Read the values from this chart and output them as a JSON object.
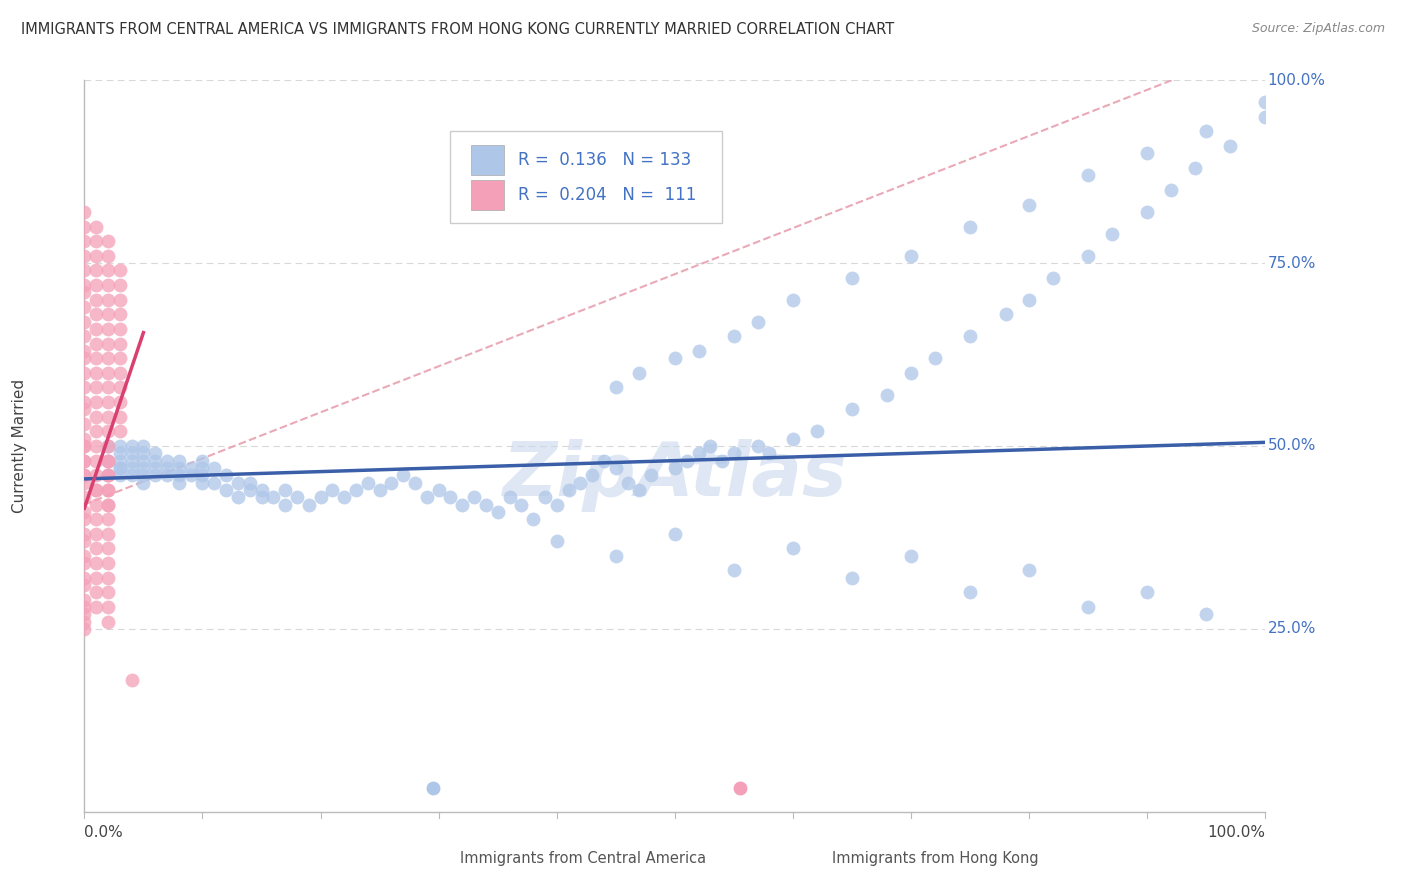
{
  "title": "IMMIGRANTS FROM CENTRAL AMERICA VS IMMIGRANTS FROM HONG KONG CURRENTLY MARRIED CORRELATION CHART",
  "source": "Source: ZipAtlas.com",
  "ylabel": "Currently Married",
  "legend_labels": [
    "Immigrants from Central America",
    "Immigrants from Hong Kong"
  ],
  "R_blue": 0.136,
  "N_blue": 133,
  "R_pink": 0.204,
  "N_pink": 111,
  "blue_color": "#aec6e8",
  "pink_color": "#f4a0b8",
  "blue_line_color": "#3a5fa8",
  "pink_line_color": "#d94070",
  "dash_line_color": "#e8a0b0",
  "watermark": "ZipAtlas",
  "background_color": "#ffffff",
  "grid_color": "#d8d8d8",
  "ytick_color": "#4472c4",
  "blue_x": [
    0.02,
    0.02,
    0.02,
    0.03,
    0.03,
    0.03,
    0.03,
    0.03,
    0.03,
    0.04,
    0.04,
    0.04,
    0.04,
    0.04,
    0.05,
    0.05,
    0.05,
    0.05,
    0.05,
    0.05,
    0.06,
    0.06,
    0.06,
    0.06,
    0.07,
    0.07,
    0.07,
    0.08,
    0.08,
    0.08,
    0.08,
    0.09,
    0.09,
    0.1,
    0.1,
    0.1,
    0.1,
    0.11,
    0.11,
    0.12,
    0.12,
    0.13,
    0.13,
    0.14,
    0.14,
    0.15,
    0.15,
    0.16,
    0.17,
    0.17,
    0.18,
    0.19,
    0.2,
    0.21,
    0.22,
    0.23,
    0.24,
    0.25,
    0.26,
    0.27,
    0.28,
    0.29,
    0.3,
    0.31,
    0.32,
    0.33,
    0.34,
    0.35,
    0.36,
    0.37,
    0.38,
    0.39,
    0.4,
    0.41,
    0.42,
    0.43,
    0.44,
    0.45,
    0.46,
    0.47,
    0.48,
    0.5,
    0.51,
    0.52,
    0.53,
    0.54,
    0.55,
    0.57,
    0.58,
    0.6,
    0.62,
    0.65,
    0.68,
    0.7,
    0.72,
    0.75,
    0.78,
    0.8,
    0.82,
    0.85,
    0.87,
    0.9,
    0.92,
    0.94,
    0.97,
    1.0,
    0.45,
    0.47,
    0.5,
    0.52,
    0.55,
    0.57,
    0.6,
    0.65,
    0.7,
    0.75,
    0.8,
    0.85,
    0.9,
    0.95,
    1.0,
    0.4,
    0.45,
    0.5,
    0.55,
    0.6,
    0.65,
    0.7,
    0.75,
    0.8,
    0.85,
    0.9,
    0.95
  ],
  "blue_y": [
    0.48,
    0.5,
    0.46,
    0.49,
    0.47,
    0.48,
    0.46,
    0.5,
    0.47,
    0.48,
    0.5,
    0.46,
    0.47,
    0.49,
    0.48,
    0.47,
    0.46,
    0.49,
    0.5,
    0.45,
    0.47,
    0.48,
    0.46,
    0.49,
    0.47,
    0.46,
    0.48,
    0.47,
    0.48,
    0.45,
    0.46,
    0.47,
    0.46,
    0.48,
    0.47,
    0.45,
    0.46,
    0.47,
    0.45,
    0.46,
    0.44,
    0.45,
    0.43,
    0.44,
    0.45,
    0.43,
    0.44,
    0.43,
    0.44,
    0.42,
    0.43,
    0.42,
    0.43,
    0.44,
    0.43,
    0.44,
    0.45,
    0.44,
    0.45,
    0.46,
    0.45,
    0.43,
    0.44,
    0.43,
    0.42,
    0.43,
    0.42,
    0.41,
    0.43,
    0.42,
    0.4,
    0.43,
    0.42,
    0.44,
    0.45,
    0.46,
    0.48,
    0.47,
    0.45,
    0.44,
    0.46,
    0.47,
    0.48,
    0.49,
    0.5,
    0.48,
    0.49,
    0.5,
    0.49,
    0.51,
    0.52,
    0.55,
    0.57,
    0.6,
    0.62,
    0.65,
    0.68,
    0.7,
    0.73,
    0.76,
    0.79,
    0.82,
    0.85,
    0.88,
    0.91,
    0.95,
    0.58,
    0.6,
    0.62,
    0.63,
    0.65,
    0.67,
    0.7,
    0.73,
    0.76,
    0.8,
    0.83,
    0.87,
    0.9,
    0.93,
    0.97,
    0.37,
    0.35,
    0.38,
    0.33,
    0.36,
    0.32,
    0.35,
    0.3,
    0.33,
    0.28,
    0.3,
    0.27
  ],
  "pink_x": [
    0.0,
    0.0,
    0.0,
    0.0,
    0.0,
    0.0,
    0.0,
    0.0,
    0.0,
    0.0,
    0.0,
    0.0,
    0.0,
    0.0,
    0.0,
    0.0,
    0.0,
    0.0,
    0.0,
    0.0,
    0.0,
    0.0,
    0.0,
    0.0,
    0.0,
    0.0,
    0.0,
    0.0,
    0.0,
    0.0,
    0.0,
    0.0,
    0.0,
    0.0,
    0.0,
    0.0,
    0.0,
    0.0,
    0.0,
    0.01,
    0.01,
    0.01,
    0.01,
    0.01,
    0.01,
    0.01,
    0.01,
    0.01,
    0.01,
    0.01,
    0.01,
    0.01,
    0.01,
    0.01,
    0.01,
    0.01,
    0.01,
    0.01,
    0.01,
    0.01,
    0.01,
    0.01,
    0.01,
    0.01,
    0.01,
    0.01,
    0.01,
    0.02,
    0.02,
    0.02,
    0.02,
    0.02,
    0.02,
    0.02,
    0.02,
    0.02,
    0.02,
    0.02,
    0.02,
    0.02,
    0.02,
    0.02,
    0.02,
    0.02,
    0.02,
    0.02,
    0.02,
    0.02,
    0.02,
    0.02,
    0.02,
    0.02,
    0.02,
    0.02,
    0.02,
    0.02,
    0.02,
    0.02,
    0.03,
    0.03,
    0.03,
    0.03,
    0.03,
    0.03,
    0.03,
    0.03,
    0.03,
    0.03,
    0.03,
    0.03,
    0.04
  ],
  "pink_y": [
    0.82,
    0.8,
    0.78,
    0.76,
    0.74,
    0.72,
    0.71,
    0.69,
    0.67,
    0.65,
    0.63,
    0.62,
    0.6,
    0.58,
    0.56,
    0.55,
    0.53,
    0.51,
    0.5,
    0.48,
    0.46,
    0.45,
    0.43,
    0.41,
    0.4,
    0.38,
    0.37,
    0.35,
    0.34,
    0.32,
    0.31,
    0.29,
    0.28,
    0.27,
    0.26,
    0.25,
    0.46,
    0.48,
    0.5,
    0.8,
    0.78,
    0.76,
    0.74,
    0.72,
    0.7,
    0.68,
    0.66,
    0.64,
    0.62,
    0.6,
    0.58,
    0.56,
    0.54,
    0.52,
    0.5,
    0.48,
    0.46,
    0.44,
    0.42,
    0.4,
    0.38,
    0.36,
    0.34,
    0.32,
    0.3,
    0.28,
    0.44,
    0.78,
    0.76,
    0.74,
    0.72,
    0.7,
    0.68,
    0.66,
    0.64,
    0.62,
    0.6,
    0.58,
    0.56,
    0.54,
    0.52,
    0.5,
    0.48,
    0.46,
    0.44,
    0.42,
    0.4,
    0.38,
    0.36,
    0.34,
    0.32,
    0.3,
    0.28,
    0.26,
    0.48,
    0.46,
    0.44,
    0.42,
    0.74,
    0.72,
    0.7,
    0.68,
    0.66,
    0.64,
    0.62,
    0.6,
    0.58,
    0.56,
    0.54,
    0.52,
    0.18
  ]
}
